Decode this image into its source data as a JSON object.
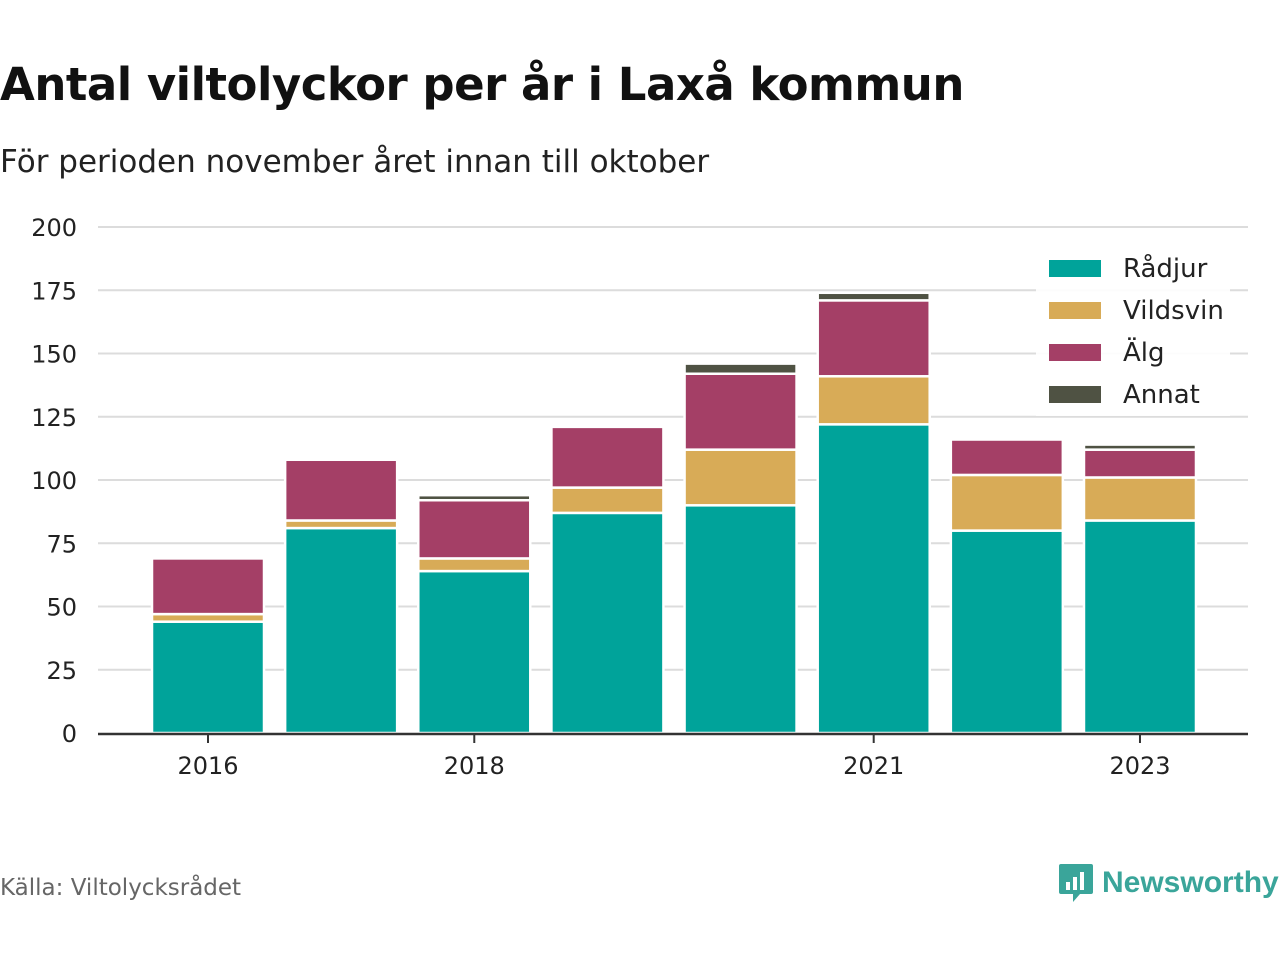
{
  "title": "Antal viltolyckor per år i Laxå kommun",
  "subtitle": "För perioden november året innan till oktober",
  "source": "Källa: Viltolycksrådet",
  "brand": {
    "name": "Newsworthy",
    "color": "#3aa59a",
    "icon": "newsworthy-logo-icon"
  },
  "chart_data": {
    "type": "bar",
    "stacked": true,
    "categories": [
      "2016",
      "2017",
      "2018",
      "2019",
      "2020",
      "2021",
      "2022",
      "2023"
    ],
    "x_tick_labels": [
      "2016",
      "",
      "2018",
      "",
      "",
      "2021",
      "",
      "2023"
    ],
    "ylim": [
      0,
      200
    ],
    "yticks": [
      0,
      25,
      50,
      75,
      100,
      125,
      150,
      175,
      200
    ],
    "grid": true,
    "legend_position": "top-right",
    "series": [
      {
        "name": "Rådjur",
        "color": "#00a39a",
        "values": [
          44,
          81,
          64,
          87,
          90,
          122,
          80,
          84
        ]
      },
      {
        "name": "Vildsvin",
        "color": "#d8ab57",
        "values": [
          3,
          3,
          5,
          10,
          22,
          19,
          22,
          17
        ]
      },
      {
        "name": "Älg",
        "color": "#a43f66",
        "values": [
          22,
          24,
          23,
          24,
          30,
          30,
          14,
          11
        ]
      },
      {
        "name": "Annat",
        "color": "#4f5243",
        "values": [
          0,
          0,
          2,
          0,
          4,
          3,
          0,
          2
        ]
      }
    ]
  }
}
